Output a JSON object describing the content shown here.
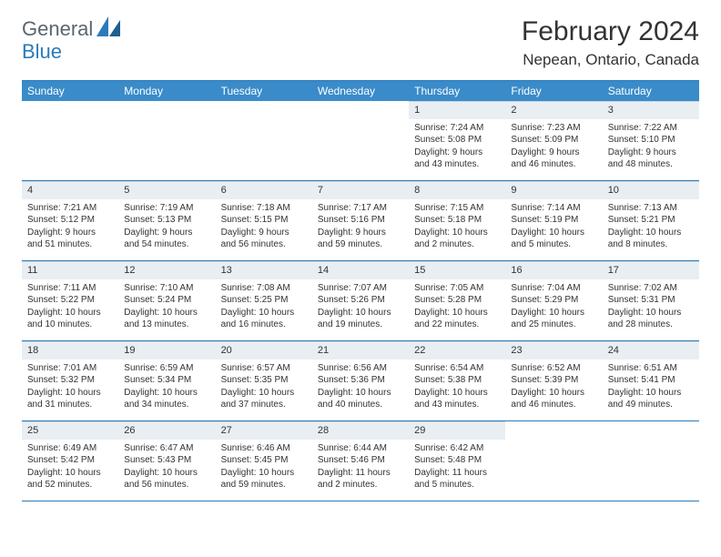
{
  "brand": {
    "part1": "General",
    "part2": "Blue"
  },
  "title": "February 2024",
  "location": "Nepean, Ontario, Canada",
  "colors": {
    "header_bg": "#3a8bc9",
    "border": "#2b7bb9",
    "num_bg": "#e9eef3",
    "text": "#333333",
    "logo_gray": "#5a6670",
    "logo_blue": "#2b7bb9"
  },
  "day_headers": [
    "Sunday",
    "Monday",
    "Tuesday",
    "Wednesday",
    "Thursday",
    "Friday",
    "Saturday"
  ],
  "weeks": [
    [
      {
        "n": "",
        "sr": "",
        "ss": "",
        "dl1": "",
        "dl2": ""
      },
      {
        "n": "",
        "sr": "",
        "ss": "",
        "dl1": "",
        "dl2": ""
      },
      {
        "n": "",
        "sr": "",
        "ss": "",
        "dl1": "",
        "dl2": ""
      },
      {
        "n": "",
        "sr": "",
        "ss": "",
        "dl1": "",
        "dl2": ""
      },
      {
        "n": "1",
        "sr": "Sunrise: 7:24 AM",
        "ss": "Sunset: 5:08 PM",
        "dl1": "Daylight: 9 hours",
        "dl2": "and 43 minutes."
      },
      {
        "n": "2",
        "sr": "Sunrise: 7:23 AM",
        "ss": "Sunset: 5:09 PM",
        "dl1": "Daylight: 9 hours",
        "dl2": "and 46 minutes."
      },
      {
        "n": "3",
        "sr": "Sunrise: 7:22 AM",
        "ss": "Sunset: 5:10 PM",
        "dl1": "Daylight: 9 hours",
        "dl2": "and 48 minutes."
      }
    ],
    [
      {
        "n": "4",
        "sr": "Sunrise: 7:21 AM",
        "ss": "Sunset: 5:12 PM",
        "dl1": "Daylight: 9 hours",
        "dl2": "and 51 minutes."
      },
      {
        "n": "5",
        "sr": "Sunrise: 7:19 AM",
        "ss": "Sunset: 5:13 PM",
        "dl1": "Daylight: 9 hours",
        "dl2": "and 54 minutes."
      },
      {
        "n": "6",
        "sr": "Sunrise: 7:18 AM",
        "ss": "Sunset: 5:15 PM",
        "dl1": "Daylight: 9 hours",
        "dl2": "and 56 minutes."
      },
      {
        "n": "7",
        "sr": "Sunrise: 7:17 AM",
        "ss": "Sunset: 5:16 PM",
        "dl1": "Daylight: 9 hours",
        "dl2": "and 59 minutes."
      },
      {
        "n": "8",
        "sr": "Sunrise: 7:15 AM",
        "ss": "Sunset: 5:18 PM",
        "dl1": "Daylight: 10 hours",
        "dl2": "and 2 minutes."
      },
      {
        "n": "9",
        "sr": "Sunrise: 7:14 AM",
        "ss": "Sunset: 5:19 PM",
        "dl1": "Daylight: 10 hours",
        "dl2": "and 5 minutes."
      },
      {
        "n": "10",
        "sr": "Sunrise: 7:13 AM",
        "ss": "Sunset: 5:21 PM",
        "dl1": "Daylight: 10 hours",
        "dl2": "and 8 minutes."
      }
    ],
    [
      {
        "n": "11",
        "sr": "Sunrise: 7:11 AM",
        "ss": "Sunset: 5:22 PM",
        "dl1": "Daylight: 10 hours",
        "dl2": "and 10 minutes."
      },
      {
        "n": "12",
        "sr": "Sunrise: 7:10 AM",
        "ss": "Sunset: 5:24 PM",
        "dl1": "Daylight: 10 hours",
        "dl2": "and 13 minutes."
      },
      {
        "n": "13",
        "sr": "Sunrise: 7:08 AM",
        "ss": "Sunset: 5:25 PM",
        "dl1": "Daylight: 10 hours",
        "dl2": "and 16 minutes."
      },
      {
        "n": "14",
        "sr": "Sunrise: 7:07 AM",
        "ss": "Sunset: 5:26 PM",
        "dl1": "Daylight: 10 hours",
        "dl2": "and 19 minutes."
      },
      {
        "n": "15",
        "sr": "Sunrise: 7:05 AM",
        "ss": "Sunset: 5:28 PM",
        "dl1": "Daylight: 10 hours",
        "dl2": "and 22 minutes."
      },
      {
        "n": "16",
        "sr": "Sunrise: 7:04 AM",
        "ss": "Sunset: 5:29 PM",
        "dl1": "Daylight: 10 hours",
        "dl2": "and 25 minutes."
      },
      {
        "n": "17",
        "sr": "Sunrise: 7:02 AM",
        "ss": "Sunset: 5:31 PM",
        "dl1": "Daylight: 10 hours",
        "dl2": "and 28 minutes."
      }
    ],
    [
      {
        "n": "18",
        "sr": "Sunrise: 7:01 AM",
        "ss": "Sunset: 5:32 PM",
        "dl1": "Daylight: 10 hours",
        "dl2": "and 31 minutes."
      },
      {
        "n": "19",
        "sr": "Sunrise: 6:59 AM",
        "ss": "Sunset: 5:34 PM",
        "dl1": "Daylight: 10 hours",
        "dl2": "and 34 minutes."
      },
      {
        "n": "20",
        "sr": "Sunrise: 6:57 AM",
        "ss": "Sunset: 5:35 PM",
        "dl1": "Daylight: 10 hours",
        "dl2": "and 37 minutes."
      },
      {
        "n": "21",
        "sr": "Sunrise: 6:56 AM",
        "ss": "Sunset: 5:36 PM",
        "dl1": "Daylight: 10 hours",
        "dl2": "and 40 minutes."
      },
      {
        "n": "22",
        "sr": "Sunrise: 6:54 AM",
        "ss": "Sunset: 5:38 PM",
        "dl1": "Daylight: 10 hours",
        "dl2": "and 43 minutes."
      },
      {
        "n": "23",
        "sr": "Sunrise: 6:52 AM",
        "ss": "Sunset: 5:39 PM",
        "dl1": "Daylight: 10 hours",
        "dl2": "and 46 minutes."
      },
      {
        "n": "24",
        "sr": "Sunrise: 6:51 AM",
        "ss": "Sunset: 5:41 PM",
        "dl1": "Daylight: 10 hours",
        "dl2": "and 49 minutes."
      }
    ],
    [
      {
        "n": "25",
        "sr": "Sunrise: 6:49 AM",
        "ss": "Sunset: 5:42 PM",
        "dl1": "Daylight: 10 hours",
        "dl2": "and 52 minutes."
      },
      {
        "n": "26",
        "sr": "Sunrise: 6:47 AM",
        "ss": "Sunset: 5:43 PM",
        "dl1": "Daylight: 10 hours",
        "dl2": "and 56 minutes."
      },
      {
        "n": "27",
        "sr": "Sunrise: 6:46 AM",
        "ss": "Sunset: 5:45 PM",
        "dl1": "Daylight: 10 hours",
        "dl2": "and 59 minutes."
      },
      {
        "n": "28",
        "sr": "Sunrise: 6:44 AM",
        "ss": "Sunset: 5:46 PM",
        "dl1": "Daylight: 11 hours",
        "dl2": "and 2 minutes."
      },
      {
        "n": "29",
        "sr": "Sunrise: 6:42 AM",
        "ss": "Sunset: 5:48 PM",
        "dl1": "Daylight: 11 hours",
        "dl2": "and 5 minutes."
      },
      {
        "n": "",
        "sr": "",
        "ss": "",
        "dl1": "",
        "dl2": ""
      },
      {
        "n": "",
        "sr": "",
        "ss": "",
        "dl1": "",
        "dl2": ""
      }
    ]
  ]
}
